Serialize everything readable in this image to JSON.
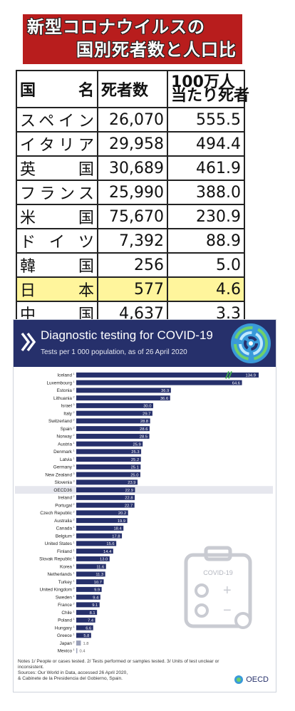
{
  "jp_table": {
    "title_line1": "新型コロナウイルスの",
    "title_line2": "国別死者数と人口比",
    "headers": {
      "country": "国　　名",
      "deaths": "死者数",
      "per_million": "100万人当たり死者"
    },
    "header_per_million_line1": "100万人",
    "header_per_million_line2": "当たり死者",
    "highlight_row": "日　本",
    "rows": [
      {
        "country": "スペイン",
        "deaths": "26,070",
        "per_million": "555.5"
      },
      {
        "country": "イタリア",
        "deaths": "29,958",
        "per_million": "494.4"
      },
      {
        "country": "英　国",
        "deaths": "30,689",
        "per_million": "461.9"
      },
      {
        "country": "フランス",
        "deaths": "25,990",
        "per_million": "388.0"
      },
      {
        "country": "米　国",
        "deaths": "75,670",
        "per_million": "230.9"
      },
      {
        "country": "ドイツ",
        "deaths": "7,392",
        "per_million": "88.9"
      },
      {
        "country": "韓　国",
        "deaths": "256",
        "per_million": "5.0"
      },
      {
        "country": "日　本",
        "deaths": "577",
        "per_million": "4.6"
      },
      {
        "country": "中　国",
        "deaths": "4,637",
        "per_million": "3.3"
      }
    ],
    "colors": {
      "title_bg": "#b81d1d",
      "highlight": "#fff59c"
    }
  },
  "chart_data": {
    "type": "bar",
    "orientation": "horizontal",
    "title": "Diagnostic testing for COVID-19",
    "subtitle": "Tests per 1 000 population, as of 26 April 2020",
    "categories": [
      "Iceland",
      "Luxembourg",
      "Estonia",
      "Lithuania",
      "Israel",
      "Italy",
      "Switzerland",
      "Spain",
      "Norway",
      "Austria",
      "Denmark",
      "Latvia",
      "Germany",
      "New Zealand",
      "Slovenia",
      "OECD36",
      "Ireland",
      "Portugal",
      "Czech Republic",
      "Australia",
      "Canada",
      "Belgium",
      "United States",
      "Finland",
      "Slovak Republic",
      "Korea",
      "Netherlands",
      "Turkey",
      "United Kingdom",
      "Sweden",
      "France",
      "Chile",
      "Poland",
      "Hungary",
      "Greece",
      "Japan",
      "Mexico"
    ],
    "footnotes": [
      "1",
      "1",
      "2",
      "2",
      "3",
      "2",
      "2",
      "2",
      "2",
      "1",
      "1",
      "1",
      "3",
      "3",
      "3",
      "",
      "2",
      "2",
      "2",
      "2",
      "1",
      "2",
      "1",
      "1",
      "1",
      "1",
      "1",
      "1",
      "2",
      "1",
      "2",
      "1",
      "1",
      "1",
      "1",
      "2",
      "1"
    ],
    "values": [
      134.9,
      64.6,
      36.9,
      36.6,
      30.0,
      29.7,
      28.8,
      28.6,
      28.5,
      25.9,
      25.3,
      25.2,
      25.1,
      25.0,
      23.9,
      22.9,
      22.8,
      22.7,
      20.2,
      19.9,
      18.4,
      17.8,
      15.6,
      14.4,
      13.0,
      11.6,
      11.3,
      10.7,
      9.9,
      9.4,
      9.1,
      8.1,
      7.4,
      6.6,
      5.8,
      1.8,
      0.4
    ],
    "value_labels": [
      "134.9",
      "64.6",
      "36.9",
      "36.6",
      "30.0",
      "29.7",
      "28.8",
      "28.6",
      "28.5",
      "25.9",
      "25.3",
      "25.2",
      "25.1",
      "25.0",
      "23.9",
      "22.9",
      "22.8",
      "22.7",
      "20.2",
      "19.9",
      "18.4",
      "17.8",
      "15.6",
      "14.4",
      "13.0",
      "11.6",
      "11.3",
      "10.7",
      "9.9",
      "9.4",
      "9.1",
      "8.1",
      "7.4",
      "6.6",
      "5.8",
      "1.8",
      "0.4"
    ],
    "highlight_category": "OECD36",
    "broken_axis_categories": [
      "Iceland"
    ],
    "xlim": [
      0,
      70
    ],
    "colors": {
      "bar": "#26306b",
      "bar_small": "#9aa0b8",
      "highlight_bg": "#e6e7ee",
      "break_mark": "#3ea84a",
      "header_bg": "#26306b"
    }
  },
  "oecd": {
    "notes": "Notes 1/ People or cases tested. 2/ Tests performed or samples tested. 3/ Units of test unclear or inconsistent.",
    "sources_line1": "Sources: Our World in Data, accessed 26 April 2020,",
    "sources_line2": "& Cabinete de la Presidencia del Gobierno, Spain.",
    "brand": "OECD",
    "covid_label": "COVID-19",
    "plus_sign": "+",
    "minus_sign": "−"
  }
}
